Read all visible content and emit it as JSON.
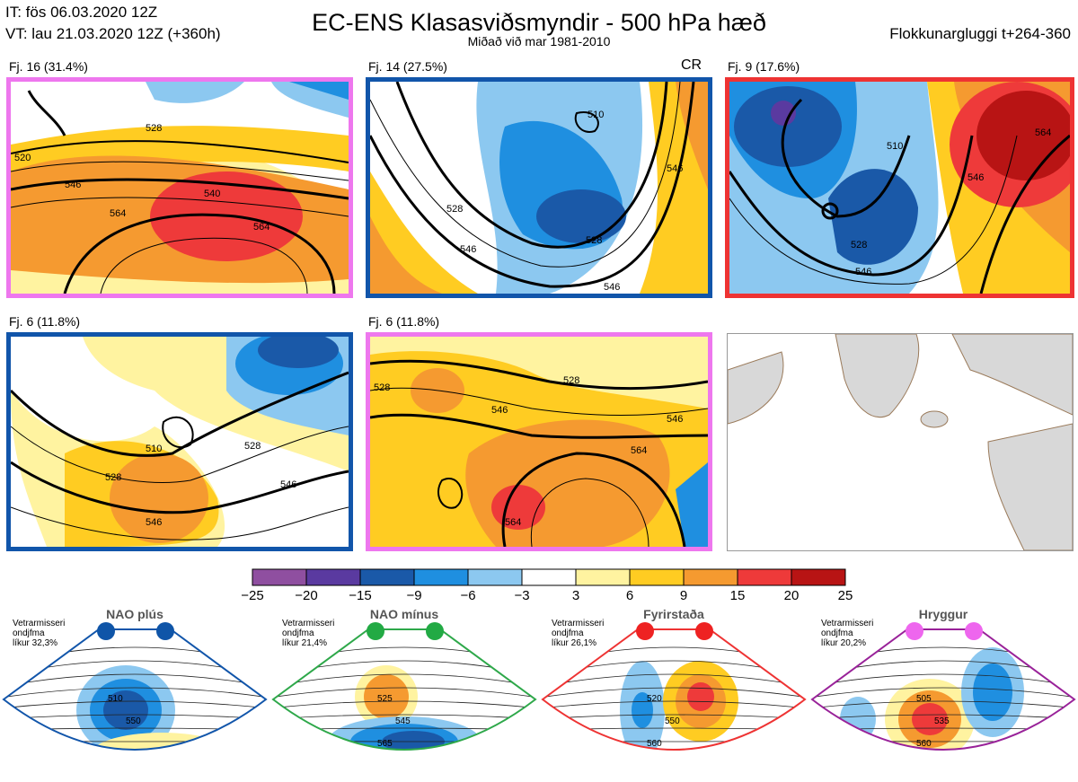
{
  "header": {
    "it_line": "IT: fös 06.03.2020 12Z",
    "vt_line": "VT: lau 21.03.2020 12Z  (+360h)",
    "title": "EC-ENS Klasasviðsmyndir - 500 hPa hæð",
    "subtitle": "Miðað við mar 1981-2010",
    "window": "Flokkunargluggi t+264-360"
  },
  "panels": [
    {
      "label": "Fj. 16 (31.4%)",
      "border": "#ee77ee",
      "contours": [
        "520",
        "528",
        "546",
        "540",
        "564",
        "564"
      ]
    },
    {
      "label": "Fj. 14 (27.5%)",
      "border": "#1155aa",
      "tag": "CR",
      "contours": [
        "510",
        "528",
        "546",
        "528",
        "546",
        "546"
      ]
    },
    {
      "label": "Fj. 9 (17.6%)",
      "border": "#ee3333",
      "contours": [
        "510",
        "528",
        "546",
        "564",
        "546"
      ]
    },
    {
      "label": "Fj. 6 (11.8%)",
      "border": "#1155aa",
      "contours": [
        "510",
        "528",
        "528",
        "546",
        "546"
      ]
    },
    {
      "label": "Fj. 6 (11.8%)",
      "border": "#ee77ee",
      "contours": [
        "528",
        "546",
        "546",
        "564",
        "564",
        "528"
      ]
    }
  ],
  "colorbar": {
    "ticks": [
      "−25",
      "−20",
      "−15",
      "−9",
      "−6",
      "−3",
      "3",
      "6",
      "9",
      "15",
      "20",
      "25"
    ],
    "colors": [
      "#8f4fa0",
      "#5a3aa0",
      "#1a59a8",
      "#1f8fe0",
      "#8cc8f0",
      "#ffffff",
      "#fff3a0",
      "#ffcc22",
      "#f59a30",
      "#ee3a3a",
      "#b81414"
    ]
  },
  "regimes": [
    {
      "name": "NAO plús",
      "note": "Vetrarmisseri\nondjfma\nlíkur 32,3%",
      "color": "#1155aa",
      "dot": "#0f55a8",
      "contours": [
        "510",
        "550"
      ]
    },
    {
      "name": "NAO mínus",
      "note": "Vetrarmisseri\nondjfma\nlíkur 21,4%",
      "color": "#2ea84a",
      "dot": "#22aa44",
      "contours": [
        "525",
        "545",
        "565"
      ]
    },
    {
      "name": "Fyrirstaða",
      "note": "Vetrarmisseri\nondjfma\nlíkur 26,1%",
      "color": "#ee3333",
      "dot": "#ee2222",
      "contours": [
        "520",
        "550",
        "560"
      ]
    },
    {
      "name": "Hryggur",
      "note": "Vetrarmisseri\nondjfma\nlíkur 20,2%",
      "color": "#992299",
      "dot": "#ee66ee",
      "contours": [
        "505",
        "535",
        "560"
      ]
    }
  ]
}
